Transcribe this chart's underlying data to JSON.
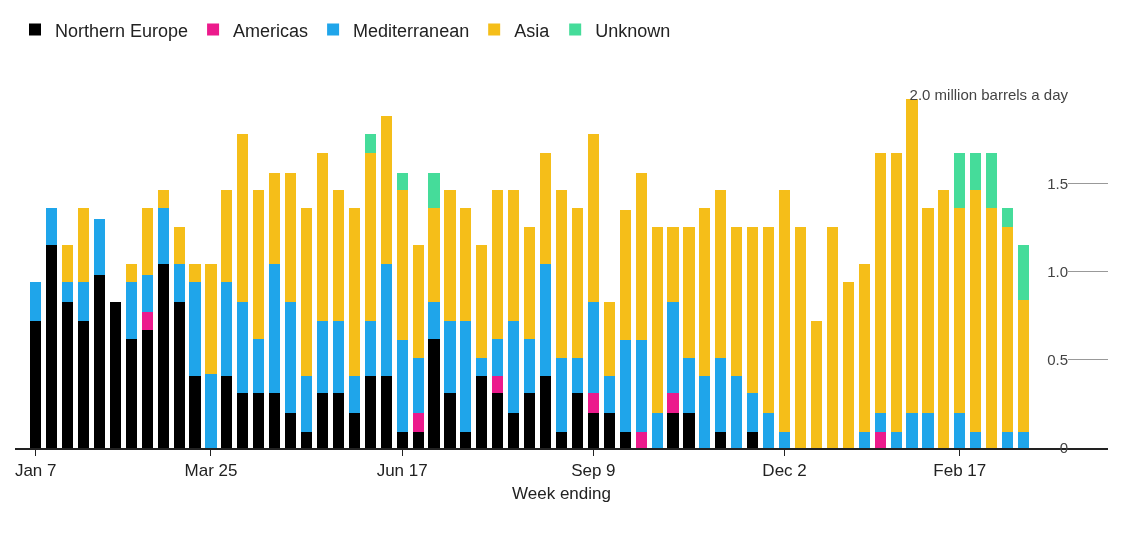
{
  "chart_data": {
    "type": "bar",
    "stacked": true,
    "xlabel": "Week ending",
    "legend": "top left",
    "categories": [
      "Jan 7",
      null,
      null,
      null,
      null,
      null,
      null,
      null,
      null,
      null,
      null,
      "Mar 25",
      null,
      null,
      null,
      null,
      null,
      null,
      null,
      null,
      null,
      null,
      null,
      "Jun 17",
      null,
      null,
      null,
      null,
      null,
      null,
      null,
      null,
      null,
      null,
      null,
      "Sep 9",
      null,
      null,
      null,
      null,
      null,
      null,
      null,
      null,
      null,
      null,
      null,
      "Dec 2",
      null,
      null,
      null,
      null,
      null,
      null,
      null,
      null,
      null,
      null,
      "Feb 17",
      null,
      null,
      null,
      null
    ],
    "ylim": [
      0,
      2.0
    ],
    "yticks": [
      0,
      0.5,
      {
        "value": 1.0,
        "label": "1.0"
      },
      1.5,
      {
        "value": 2.0,
        "label": "2.0 million barrels a day"
      }
    ],
    "series": [
      {
        "name": "Northern Europe",
        "color": "#000000",
        "values": [
          0.72,
          1.15,
          0.83,
          0.72,
          0.98,
          0.83,
          0.62,
          0.67,
          1.04,
          0.83,
          0.41,
          0,
          0.41,
          0.31,
          0.31,
          0.31,
          0.2,
          0.09,
          0.31,
          0.31,
          0.2,
          0.41,
          0.41,
          0.09,
          0.09,
          0.62,
          0.31,
          0.09,
          0.41,
          0.31,
          0.2,
          0.31,
          0.41,
          0.09,
          0.31,
          0.2,
          0.2,
          0.09,
          0,
          0,
          0.2,
          0.2,
          0,
          0.09,
          0,
          0.09,
          0,
          0,
          0,
          0,
          0,
          0,
          0,
          0,
          0,
          0,
          0,
          0,
          0,
          0,
          0,
          0,
          0
        ]
      },
      {
        "name": "Americas",
        "color": "#ec1a8c",
        "values": [
          0,
          0,
          0,
          0,
          0,
          0,
          0,
          0.1,
          0,
          0,
          0,
          0,
          0,
          0,
          0,
          0,
          0,
          0,
          0,
          0,
          0,
          0,
          0,
          0,
          0.11,
          0,
          0,
          0,
          0,
          0.1,
          0,
          0,
          0,
          0,
          0,
          0.11,
          0,
          0,
          0.09,
          0,
          0.11,
          0,
          0,
          0,
          0,
          0,
          0,
          0,
          0,
          0,
          0,
          0,
          0,
          0.09,
          0,
          0,
          0,
          0,
          0,
          0,
          0,
          0,
          0
        ]
      },
      {
        "name": "Mediterranean",
        "color": "#1fa5ea",
        "values": [
          0.22,
          0.21,
          0.11,
          0.22,
          0.32,
          0,
          0.32,
          0.21,
          0.32,
          0.21,
          0.53,
          0.42,
          0.53,
          0.52,
          0.31,
          0.73,
          0.63,
          0.32,
          0.41,
          0.41,
          0.21,
          0.31,
          0.63,
          0.52,
          0.31,
          0.21,
          0.41,
          0.63,
          0.1,
          0.21,
          0.52,
          0.31,
          0.63,
          0.42,
          0.2,
          0.52,
          0.21,
          0.52,
          0.52,
          0.2,
          0.52,
          0.31,
          0.41,
          0.42,
          0.41,
          0.22,
          0.2,
          0.09,
          0,
          0,
          0,
          0,
          0.09,
          0.11,
          0.09,
          0.2,
          0.2,
          0,
          0.2,
          0.09,
          0,
          0.09,
          0.09
        ]
      },
      {
        "name": "Asia",
        "color": "#f5be19",
        "values": [
          0,
          0,
          0.21,
          0.42,
          0,
          0,
          0.1,
          0.38,
          0.1,
          0.21,
          0.1,
          0.62,
          0.52,
          0.95,
          0.84,
          0.52,
          0.73,
          0.95,
          0.95,
          0.74,
          0.95,
          0.95,
          0.84,
          0.85,
          0.64,
          0.53,
          0.74,
          0.64,
          0.64,
          0.84,
          0.74,
          0.63,
          0.63,
          0.95,
          0.85,
          0.95,
          0.42,
          0.74,
          0.95,
          1.05,
          0.42,
          0.74,
          0.95,
          0.95,
          0.84,
          0.94,
          1.05,
          1.37,
          1.25,
          0.72,
          1.25,
          0.94,
          0.95,
          1.47,
          1.58,
          1.78,
          1.16,
          1.46,
          1.16,
          1.37,
          1.36,
          1.16,
          0.75
        ]
      },
      {
        "name": "Unknown",
        "color": "#45dc9a",
        "values": [
          0,
          0,
          0,
          0,
          0,
          0,
          0,
          0,
          0,
          0,
          0,
          0,
          0,
          0,
          0,
          0,
          0,
          0,
          0,
          0,
          0,
          0.11,
          0,
          0.1,
          0,
          0.2,
          0,
          0,
          0,
          0,
          0,
          0,
          0,
          0,
          0,
          0,
          0,
          0,
          0,
          0,
          0,
          0,
          0,
          0,
          0,
          0,
          0,
          0,
          0,
          0,
          0,
          0,
          0,
          0,
          0,
          0,
          0,
          0,
          0.31,
          0.21,
          0.31,
          0.11,
          0.31
        ]
      }
    ]
  }
}
